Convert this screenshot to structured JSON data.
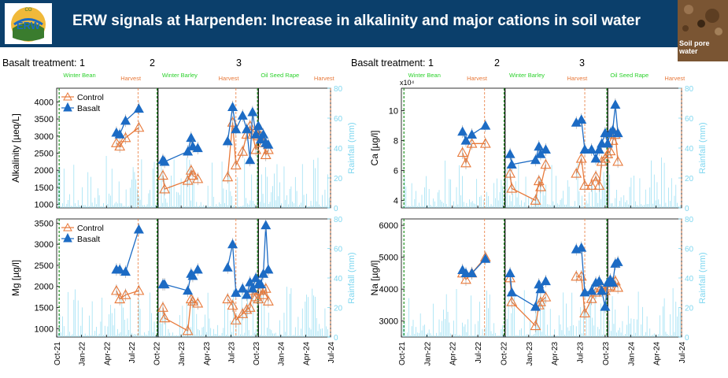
{
  "header": {
    "title": "ERW signals at Harpenden: Increase in alkalinity and major cations in soil water",
    "logo_text": "ERW",
    "logo_small_text": "CO",
    "thumbnail_label_line1": "Soil pore",
    "thumbnail_label_line2": "water",
    "banner_color": "#0b3f6b"
  },
  "treatments": {
    "label": "Basalt treatment: 1",
    "seg2": "2",
    "seg3": "3"
  },
  "crops": {
    "winter_bean": "Winter Bean",
    "winter_barley": "Winter Barley",
    "oil_seed_rape": "Oil Seed Rape",
    "harvest": "Harvest"
  },
  "colors": {
    "control": "#e8793a",
    "basalt": "#1c6bc4",
    "rainfall": "#7fd7f0",
    "crop_label": "#2bd12b",
    "harvest_label": "#e8793a"
  },
  "legend": {
    "control": "Control",
    "basalt": "Basalt"
  },
  "x_ticks": [
    "Oct-21",
    "Jan-22",
    "Apr-22",
    "Jul-22",
    "Oct-22",
    "Jan-23",
    "Apr-23",
    "Jul-23",
    "Oct-23",
    "Jan-24",
    "Apr-24",
    "Jul-24"
  ],
  "chart_data": [
    {
      "type": "scatter",
      "name": "alkalinity",
      "ylabel": "Alkalinity [µeq/L]",
      "y2label": "Rainfall (mm)",
      "ylim": [
        900,
        4400
      ],
      "yticks": [
        1000,
        1500,
        2000,
        2500,
        3000,
        3500,
        4000
      ],
      "y2lim": [
        0,
        80
      ],
      "y2ticks": [
        0,
        20,
        40,
        60,
        80
      ],
      "legend": true,
      "series": [
        {
          "name": "Control",
          "points": [
            [
              7.2,
              2800
            ],
            [
              7.6,
              2700
            ],
            [
              8.3,
              2950
            ],
            [
              9.9,
              3250
            ]
          ],
          "points2": [
            [
              12.8,
              1850
            ],
            [
              13.0,
              1450
            ],
            [
              15.8,
              1700
            ],
            [
              16.2,
              2000
            ],
            [
              16.4,
              1850
            ],
            [
              17.0,
              1750
            ]
          ],
          "points3": [
            [
              20.6,
              1800
            ],
            [
              21.2,
              3400
            ],
            [
              21.6,
              2150
            ],
            [
              22.4,
              2550
            ],
            [
              22.9,
              3050
            ],
            [
              23.3,
              3300
            ],
            [
              23.6,
              3050
            ],
            [
              24.0,
              2600
            ],
            [
              24.3,
              3000
            ],
            [
              24.6,
              3150
            ],
            [
              24.9,
              2800
            ],
            [
              25.2,
              2450
            ],
            [
              25.5,
              2600
            ]
          ]
        },
        {
          "name": "Basalt",
          "points": [
            [
              7.2,
              3100
            ],
            [
              7.6,
              3050
            ],
            [
              8.3,
              3450
            ],
            [
              9.9,
              3800
            ]
          ],
          "points2": [
            [
              12.8,
              2300
            ],
            [
              13.0,
              2250
            ],
            [
              15.8,
              2550
            ],
            [
              16.2,
              2950
            ],
            [
              16.4,
              2700
            ],
            [
              17.0,
              2650
            ]
          ],
          "points3": [
            [
              20.6,
              2850
            ],
            [
              21.2,
              3850
            ],
            [
              21.6,
              3200
            ],
            [
              22.4,
              3600
            ],
            [
              22.9,
              3200
            ],
            [
              23.3,
              2300
            ],
            [
              23.6,
              3700
            ],
            [
              24.0,
              3050
            ],
            [
              24.3,
              3300
            ],
            [
              24.6,
              2900
            ],
            [
              24.9,
              3050
            ],
            [
              25.2,
              2800
            ],
            [
              25.5,
              2750
            ]
          ]
        }
      ]
    },
    {
      "type": "scatter",
      "name": "ca",
      "ylabel": "Ca [µg/l]",
      "y2label": "Rainfall (mm)",
      "exponent": "x10⁴",
      "ylim": [
        3.5,
        11.5
      ],
      "yticks": [
        4,
        6,
        8,
        10
      ],
      "y2lim": [
        0,
        80
      ],
      "y2ticks": [
        0,
        20,
        40,
        60,
        80
      ],
      "legend": false,
      "series": [
        {
          "name": "Control",
          "points": [
            [
              7.2,
              7.2
            ],
            [
              7.6,
              6.5
            ],
            [
              8.3,
              7.8
            ],
            [
              9.9,
              7.8
            ]
          ],
          "points2": [
            [
              12.8,
              5.8
            ],
            [
              13.0,
              4.8
            ],
            [
              15.8,
              4.0
            ],
            [
              16.2,
              5.3
            ],
            [
              16.4,
              4.9
            ],
            [
              17.0,
              6.4
            ]
          ],
          "points3": [
            [
              20.6,
              5.8
            ],
            [
              21.2,
              6.8
            ],
            [
              21.6,
              5.0
            ],
            [
              22.4,
              5.0
            ],
            [
              22.9,
              5.6
            ],
            [
              23.3,
              5.0
            ],
            [
              23.6,
              6.6
            ],
            [
              24.0,
              6.8
            ],
            [
              24.3,
              7.1
            ],
            [
              24.6,
              7.3
            ],
            [
              24.9,
              8.0
            ],
            [
              25.2,
              8.4
            ],
            [
              25.5,
              6.6
            ]
          ]
        },
        {
          "name": "Basalt",
          "points": [
            [
              7.2,
              8.6
            ],
            [
              7.6,
              8.0
            ],
            [
              8.3,
              8.4
            ],
            [
              9.9,
              9.0
            ]
          ],
          "points2": [
            [
              12.8,
              7.1
            ],
            [
              13.0,
              6.4
            ],
            [
              15.8,
              6.7
            ],
            [
              16.2,
              7.6
            ],
            [
              16.4,
              7.1
            ],
            [
              17.0,
              7.4
            ]
          ],
          "points3": [
            [
              20.6,
              9.2
            ],
            [
              21.2,
              9.4
            ],
            [
              21.6,
              7.4
            ],
            [
              22.4,
              7.4
            ],
            [
              22.9,
              6.8
            ],
            [
              23.3,
              7.4
            ],
            [
              23.6,
              7.8
            ],
            [
              24.0,
              8.5
            ],
            [
              24.3,
              7.8
            ],
            [
              24.6,
              8.5
            ],
            [
              24.9,
              8.7
            ],
            [
              25.2,
              10.4
            ],
            [
              25.5,
              8.5
            ]
          ]
        }
      ]
    },
    {
      "type": "scatter",
      "name": "mg",
      "ylabel": "Mg [µg/l]",
      "y2label": "Rainfall (mm)",
      "ylim": [
        800,
        3600
      ],
      "yticks": [
        1000,
        1500,
        2000,
        2500,
        3000,
        3500
      ],
      "y2lim": [
        0,
        80
      ],
      "y2ticks": [
        0,
        20,
        40,
        60,
        80
      ],
      "legend": true,
      "series": [
        {
          "name": "Control",
          "points": [
            [
              7.2,
              1900
            ],
            [
              7.6,
              1700
            ],
            [
              8.3,
              1800
            ],
            [
              9.9,
              1900
            ]
          ],
          "points2": [
            [
              12.8,
              1500
            ],
            [
              13.0,
              1250
            ],
            [
              15.8,
              950
            ],
            [
              16.2,
              1700
            ],
            [
              16.4,
              1650
            ],
            [
              17.0,
              1600
            ]
          ],
          "points3": [
            [
              20.6,
              1700
            ],
            [
              21.2,
              1550
            ],
            [
              21.6,
              1200
            ],
            [
              22.4,
              1350
            ],
            [
              22.9,
              1450
            ],
            [
              23.3,
              1500
            ],
            [
              23.6,
              1900
            ],
            [
              24.0,
              1750
            ],
            [
              24.3,
              1700
            ],
            [
              24.6,
              1900
            ],
            [
              24.9,
              1800
            ],
            [
              25.2,
              1950
            ],
            [
              25.5,
              1650
            ]
          ]
        },
        {
          "name": "Basalt",
          "points": [
            [
              7.2,
              2400
            ],
            [
              7.6,
              2400
            ],
            [
              8.3,
              2350
            ],
            [
              9.9,
              3350
            ]
          ],
          "points2": [
            [
              12.8,
              2050
            ],
            [
              13.0,
              2050
            ],
            [
              15.8,
              1900
            ],
            [
              16.2,
              2300
            ],
            [
              16.4,
              2250
            ],
            [
              17.0,
              2400
            ]
          ],
          "points3": [
            [
              20.6,
              2450
            ],
            [
              21.2,
              3000
            ],
            [
              21.6,
              1850
            ],
            [
              22.4,
              1950
            ],
            [
              22.9,
              1800
            ],
            [
              23.3,
              2100
            ],
            [
              23.6,
              1950
            ],
            [
              24.0,
              2200
            ],
            [
              24.3,
              2050
            ],
            [
              24.6,
              2050
            ],
            [
              24.9,
              2300
            ],
            [
              25.2,
              3450
            ],
            [
              25.5,
              2400
            ]
          ]
        }
      ]
    },
    {
      "type": "scatter",
      "name": "na",
      "ylabel": "Na [µg/l]",
      "y2label": "Rainfall (mm)",
      "ylim": [
        2500,
        6200
      ],
      "yticks": [
        3000,
        4000,
        5000,
        6000
      ],
      "y2lim": [
        0,
        80
      ],
      "y2ticks": [
        0,
        20,
        40,
        60,
        80
      ],
      "legend": false,
      "series": [
        {
          "name": "Control",
          "points": [
            [
              7.2,
              4500
            ],
            [
              7.6,
              4300
            ],
            [
              8.3,
              4500
            ],
            [
              9.9,
              5000
            ]
          ],
          "points2": [
            [
              12.8,
              4350
            ],
            [
              13.0,
              3600
            ],
            [
              15.8,
              2850
            ],
            [
              16.2,
              3500
            ],
            [
              16.4,
              3600
            ],
            [
              17.0,
              3750
            ]
          ],
          "points3": [
            [
              20.6,
              4400
            ],
            [
              21.2,
              4400
            ],
            [
              21.6,
              3250
            ],
            [
              22.4,
              3700
            ],
            [
              22.9,
              3900
            ],
            [
              23.3,
              3950
            ],
            [
              23.6,
              4100
            ],
            [
              24.0,
              3950
            ],
            [
              24.3,
              4050
            ],
            [
              24.6,
              4100
            ],
            [
              24.9,
              4200
            ],
            [
              25.2,
              4250
            ],
            [
              25.5,
              4050
            ]
          ]
        },
        {
          "name": "Basalt",
          "points": [
            [
              7.2,
              4600
            ],
            [
              7.6,
              4500
            ],
            [
              8.3,
              4500
            ],
            [
              9.9,
              4950
            ]
          ],
          "points2": [
            [
              12.8,
              4500
            ],
            [
              13.0,
              3900
            ],
            [
              15.8,
              3450
            ],
            [
              16.2,
              4150
            ],
            [
              16.4,
              4000
            ],
            [
              17.0,
              4250
            ]
          ],
          "points3": [
            [
              20.6,
              5250
            ],
            [
              21.2,
              5300
            ],
            [
              21.6,
              3900
            ],
            [
              22.4,
              3950
            ],
            [
              22.9,
              4200
            ],
            [
              23.3,
              4250
            ],
            [
              23.6,
              3950
            ],
            [
              24.0,
              3450
            ],
            [
              24.3,
              4200
            ],
            [
              24.6,
              4300
            ],
            [
              24.9,
              4200
            ],
            [
              25.2,
              4800
            ],
            [
              25.5,
              4850
            ]
          ]
        }
      ]
    }
  ]
}
